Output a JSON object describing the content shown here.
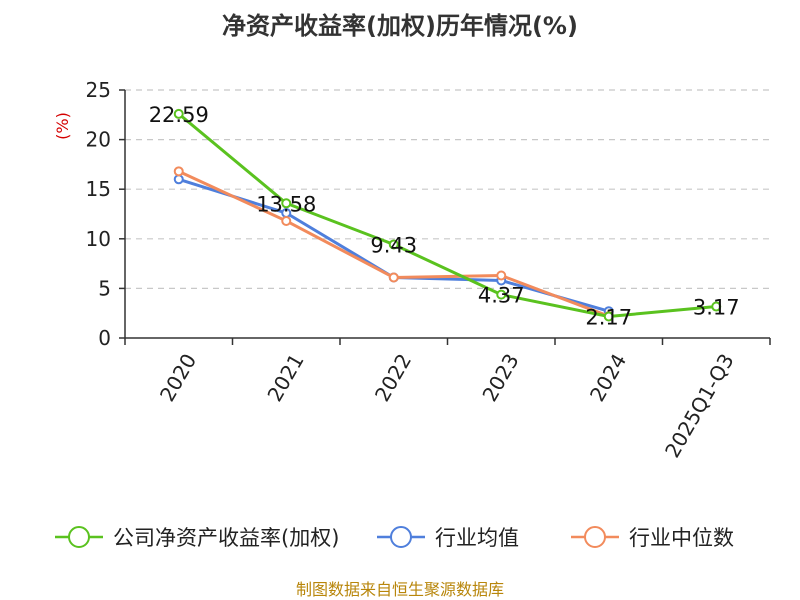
{
  "chart_data": {
    "type": "line",
    "title": "净资产收益率(加权)历年情况(%)",
    "xlabel": "",
    "ylabel": "(%)",
    "categories": [
      "2020",
      "2021",
      "2022",
      "2023",
      "2024",
      "2025Q1-Q3"
    ],
    "ylim": [
      0,
      25
    ],
    "yticks": [
      0,
      5,
      10,
      15,
      20,
      25
    ],
    "grid": true,
    "legend_position": "bottom",
    "series": [
      {
        "name": "公司净资产收益率(加权)",
        "color": "#5ac21f",
        "values": [
          22.59,
          13.58,
          9.43,
          4.37,
          2.17,
          3.17
        ],
        "labels": [
          "22.59",
          "13.58",
          "9.43",
          "4.37",
          "2.17",
          "3.17"
        ]
      },
      {
        "name": "行业均值",
        "color": "#4f7fdc",
        "values": [
          16.0,
          12.6,
          6.1,
          5.8,
          2.7,
          null
        ]
      },
      {
        "name": "行业中位数",
        "color": "#f28b5c",
        "values": [
          16.8,
          11.8,
          6.1,
          6.3,
          2.2,
          null
        ]
      }
    ],
    "source": "制图数据来自恒生聚源数据库"
  }
}
